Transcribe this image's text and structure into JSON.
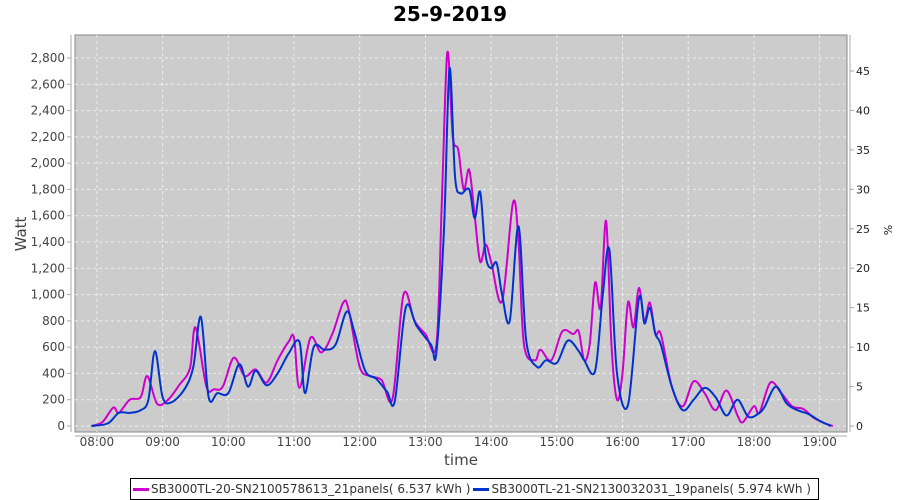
{
  "chart_data": {
    "type": "line",
    "title": "25-9-2019",
    "xlabel": "time",
    "ylabel": "Watt",
    "y2label": "%",
    "xlim": [
      "07:40",
      "19:25"
    ],
    "ylim": [
      0,
      2950
    ],
    "y2lim": [
      0,
      49.2
    ],
    "grid": true,
    "legend_position": "bottom",
    "x_ticks": [
      "08:00",
      "09:00",
      "10:00",
      "11:00",
      "12:00",
      "13:00",
      "14:00",
      "15:00",
      "16:00",
      "17:00",
      "18:00",
      "19:00"
    ],
    "y_ticks": [
      0,
      200,
      400,
      600,
      800,
      1000,
      1200,
      1400,
      1600,
      1800,
      2000,
      2200,
      2400,
      2600,
      2800
    ],
    "y_tick_labels": [
      "0",
      "200",
      "400",
      "600",
      "800",
      "1,000",
      "1,200",
      "1,400",
      "1,600",
      "1,800",
      "2,000",
      "2,200",
      "2,400",
      "2,600",
      "2,800"
    ],
    "y2_ticks": [
      "0",
      "5",
      "10",
      "15",
      "20",
      "25",
      "30",
      "35",
      "40",
      "45"
    ],
    "colors": {
      "plot_bg": "#cccccc",
      "grid": "#eeeeee"
    },
    "series": [
      {
        "name": "SB3000TL-20-SN2100578613_21panels( 6.537 kWh )",
        "color": "#cc00cc",
        "x": [
          "07:55",
          "08:05",
          "08:15",
          "08:20",
          "08:30",
          "08:40",
          "08:46",
          "08:55",
          "09:05",
          "09:15",
          "09:25",
          "09:30",
          "09:40",
          "09:47",
          "09:55",
          "10:05",
          "10:15",
          "10:25",
          "10:35",
          "10:45",
          "10:55",
          "11:00",
          "11:05",
          "11:15",
          "11:25",
          "11:35",
          "11:45",
          "11:50",
          "12:00",
          "12:10",
          "12:20",
          "12:30",
          "12:40",
          "12:50",
          "13:00",
          "13:10",
          "13:15",
          "13:20",
          "13:25",
          "13:30",
          "13:35",
          "13:40",
          "13:45",
          "13:50",
          "13:55",
          "14:00",
          "14:10",
          "14:20",
          "14:25",
          "14:30",
          "14:40",
          "14:45",
          "14:55",
          "15:05",
          "15:15",
          "15:20",
          "15:25",
          "15:30",
          "15:35",
          "15:40",
          "15:45",
          "15:50",
          "15:55",
          "16:00",
          "16:05",
          "16:10",
          "16:15",
          "16:20",
          "16:25",
          "16:30",
          "16:35",
          "16:45",
          "16:55",
          "17:05",
          "17:15",
          "17:25",
          "17:35",
          "17:45",
          "17:50",
          "18:00",
          "18:05",
          "18:15",
          "18:25",
          "18:35",
          "18:45",
          "18:55",
          "19:05",
          "19:12"
        ],
        "values": [
          0,
          30,
          140,
          100,
          200,
          220,
          380,
          170,
          200,
          310,
          440,
          750,
          300,
          280,
          300,
          520,
          380,
          430,
          330,
          500,
          640,
          670,
          290,
          670,
          560,
          700,
          940,
          880,
          450,
          380,
          350,
          210,
          1000,
          800,
          700,
          620,
          1700,
          2840,
          2200,
          2100,
          1800,
          1950,
          1600,
          1250,
          1380,
          1250,
          950,
          1700,
          1400,
          620,
          500,
          580,
          500,
          720,
          700,
          720,
          500,
          620,
          1090,
          900,
          1560,
          600,
          200,
          400,
          940,
          750,
          1050,
          800,
          940,
          700,
          700,
          300,
          150,
          340,
          250,
          120,
          270,
          80,
          30,
          150,
          100,
          330,
          250,
          150,
          130,
          60,
          20,
          0
        ]
      },
      {
        "name": "SB3000TL-21-SN2130032031_19panels( 5.974 kWh )",
        "color": "#0033cc",
        "x": [
          "07:55",
          "08:10",
          "08:20",
          "08:30",
          "08:40",
          "08:47",
          "08:53",
          "09:00",
          "09:08",
          "09:20",
          "09:28",
          "09:35",
          "09:42",
          "09:50",
          "10:00",
          "10:10",
          "10:18",
          "10:25",
          "10:35",
          "10:45",
          "10:55",
          "11:05",
          "11:10",
          "11:18",
          "11:28",
          "11:38",
          "11:48",
          "11:55",
          "12:05",
          "12:15",
          "12:25",
          "12:32",
          "12:42",
          "12:52",
          "13:05",
          "13:10",
          "13:17",
          "13:22",
          "13:27",
          "13:32",
          "13:40",
          "13:45",
          "13:50",
          "13:55",
          "14:00",
          "14:05",
          "14:10",
          "14:17",
          "14:25",
          "14:32",
          "14:42",
          "14:50",
          "15:00",
          "15:10",
          "15:20",
          "15:25",
          "15:35",
          "15:42",
          "15:48",
          "15:55",
          "16:05",
          "16:15",
          "16:20",
          "16:25",
          "16:30",
          "16:35",
          "16:45",
          "16:55",
          "17:05",
          "17:15",
          "17:25",
          "17:35",
          "17:45",
          "17:55",
          "18:05",
          "18:10",
          "18:20",
          "18:30",
          "18:40",
          "18:50",
          "19:00",
          "19:10"
        ],
        "values": [
          0,
          20,
          100,
          100,
          120,
          200,
          570,
          220,
          180,
          280,
          450,
          830,
          220,
          250,
          250,
          470,
          300,
          420,
          310,
          400,
          550,
          640,
          250,
          600,
          580,
          620,
          870,
          720,
          420,
          360,
          260,
          190,
          900,
          760,
          620,
          560,
          1500,
          2720,
          1900,
          1770,
          1800,
          1580,
          1780,
          1300,
          1200,
          1240,
          1000,
          800,
          1520,
          650,
          450,
          500,
          480,
          650,
          570,
          500,
          420,
          1000,
          1340,
          400,
          160,
          970,
          780,
          900,
          700,
          620,
          300,
          120,
          200,
          290,
          220,
          80,
          200,
          70,
          100,
          150,
          300,
          170,
          120,
          90,
          40,
          0
        ]
      }
    ]
  }
}
